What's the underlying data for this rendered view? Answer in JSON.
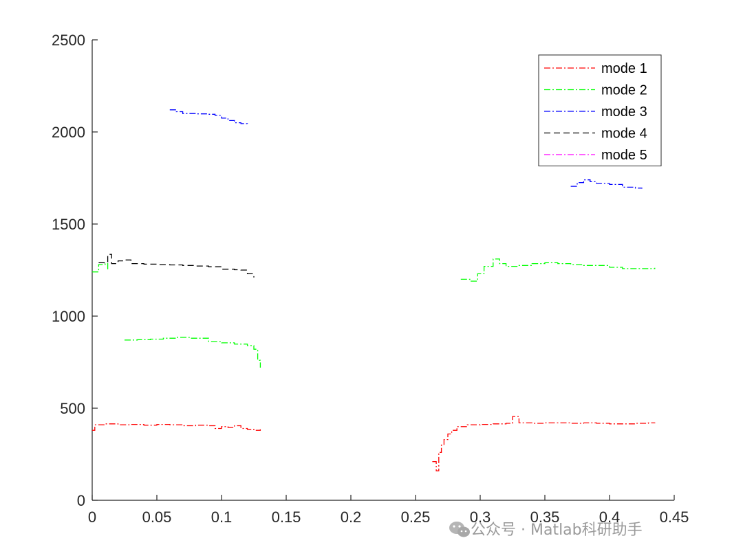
{
  "chart_data": {
    "type": "line",
    "title": "",
    "xlabel": "",
    "ylabel": "",
    "xlim": [
      0,
      0.45
    ],
    "ylim": [
      0,
      2500
    ],
    "x_ticks": [
      "0",
      "0.05",
      "0.1",
      "0.15",
      "0.2",
      "0.25",
      "0.3",
      "0.35",
      "0.4",
      "0.45"
    ],
    "y_ticks": [
      "0",
      "500",
      "1000",
      "1500",
      "2000",
      "2500"
    ],
    "grid": false,
    "legend_position": "top-right",
    "series": [
      {
        "name": "mode 1",
        "color": "#ff0000",
        "dash": "dash-dot",
        "segments": [
          [
            [
              0.0,
              380
            ],
            [
              0.002,
              410
            ],
            [
              0.01,
              415
            ],
            [
              0.02,
              410
            ],
            [
              0.03,
              412
            ],
            [
              0.04,
              408
            ],
            [
              0.05,
              412
            ],
            [
              0.06,
              410
            ],
            [
              0.07,
              405
            ],
            [
              0.08,
              408
            ],
            [
              0.09,
              405
            ],
            [
              0.095,
              390
            ],
            [
              0.1,
              400
            ],
            [
              0.105,
              395
            ],
            [
              0.11,
              405
            ],
            [
              0.115,
              390
            ],
            [
              0.12,
              385
            ],
            [
              0.125,
              380
            ],
            [
              0.13,
              385
            ]
          ],
          [
            [
              0.263,
              210
            ],
            [
              0.266,
              160
            ],
            [
              0.268,
              260
            ],
            [
              0.27,
              300
            ],
            [
              0.272,
              330
            ],
            [
              0.275,
              360
            ],
            [
              0.278,
              380
            ],
            [
              0.282,
              400
            ],
            [
              0.29,
              410
            ],
            [
              0.3,
              412
            ],
            [
              0.31,
              415
            ],
            [
              0.32,
              418
            ],
            [
              0.325,
              455
            ],
            [
              0.33,
              420
            ],
            [
              0.34,
              418
            ],
            [
              0.35,
              420
            ],
            [
              0.36,
              420
            ],
            [
              0.37,
              418
            ],
            [
              0.38,
              420
            ],
            [
              0.39,
              418
            ],
            [
              0.4,
              415
            ],
            [
              0.41,
              415
            ],
            [
              0.42,
              418
            ],
            [
              0.43,
              420
            ],
            [
              0.435,
              422
            ]
          ]
        ]
      },
      {
        "name": "mode 2",
        "color": "#00ff00",
        "dash": "dash-dot",
        "segments": [
          [
            [
              0.0,
              1240
            ],
            [
              0.005,
              1280
            ],
            [
              0.01,
              1285
            ],
            [
              0.012,
              1250
            ]
          ],
          [
            [
              0.025,
              870
            ],
            [
              0.035,
              872
            ],
            [
              0.045,
              875
            ],
            [
              0.055,
              880
            ],
            [
              0.065,
              885
            ],
            [
              0.075,
              880
            ],
            [
              0.08,
              880
            ],
            [
              0.09,
              862
            ],
            [
              0.1,
              855
            ],
            [
              0.11,
              848
            ],
            [
              0.12,
              840
            ],
            [
              0.125,
              820
            ],
            [
              0.128,
              760
            ],
            [
              0.13,
              720
            ]
          ],
          [
            [
              0.285,
              1200
            ],
            [
              0.292,
              1190
            ],
            [
              0.298,
              1230
            ],
            [
              0.303,
              1270
            ],
            [
              0.31,
              1310
            ],
            [
              0.315,
              1285
            ],
            [
              0.32,
              1270
            ],
            [
              0.33,
              1275
            ],
            [
              0.34,
              1285
            ],
            [
              0.35,
              1290
            ],
            [
              0.36,
              1285
            ],
            [
              0.37,
              1280
            ],
            [
              0.38,
              1275
            ],
            [
              0.39,
              1275
            ],
            [
              0.4,
              1265
            ],
            [
              0.41,
              1258
            ],
            [
              0.42,
              1258
            ],
            [
              0.43,
              1258
            ],
            [
              0.435,
              1262
            ]
          ]
        ]
      },
      {
        "name": "mode 3",
        "color": "#0000ff",
        "dash": "dash-dot",
        "segments": [
          [
            [
              0.06,
              2120
            ],
            [
              0.065,
              2110
            ],
            [
              0.07,
              2100
            ],
            [
              0.08,
              2098
            ],
            [
              0.09,
              2096
            ],
            [
              0.095,
              2090
            ],
            [
              0.1,
              2075
            ],
            [
              0.105,
              2062
            ],
            [
              0.11,
              2050
            ],
            [
              0.115,
              2045
            ],
            [
              0.12,
              2035
            ]
          ],
          [
            [
              0.37,
              1705
            ],
            [
              0.375,
              1725
            ],
            [
              0.38,
              1740
            ],
            [
              0.385,
              1730
            ],
            [
              0.39,
              1720
            ],
            [
              0.4,
              1715
            ],
            [
              0.41,
              1700
            ],
            [
              0.42,
              1695
            ],
            [
              0.425,
              1692
            ]
          ]
        ]
      },
      {
        "name": "mode 4",
        "color": "#000000",
        "dash": "dashed",
        "segments": [
          [
            [
              0.005,
              1290
            ],
            [
              0.01,
              1290
            ],
            [
              0.012,
              1335
            ],
            [
              0.015,
              1285
            ],
            [
              0.02,
              1300
            ],
            [
              0.025,
              1305
            ],
            [
              0.03,
              1285
            ],
            [
              0.04,
              1282
            ],
            [
              0.05,
              1280
            ],
            [
              0.06,
              1278
            ],
            [
              0.07,
              1275
            ],
            [
              0.08,
              1272
            ],
            [
              0.09,
              1268
            ],
            [
              0.1,
              1255
            ],
            [
              0.11,
              1252
            ],
            [
              0.115,
              1250
            ],
            [
              0.12,
              1230
            ],
            [
              0.125,
              1210
            ]
          ]
        ]
      },
      {
        "name": "mode 5",
        "color": "#ff00ff",
        "dash": "dash-dot",
        "segments": []
      }
    ]
  },
  "watermark": {
    "text": "公众号 · Matlab科研助手",
    "icon": "wechat-icon"
  }
}
